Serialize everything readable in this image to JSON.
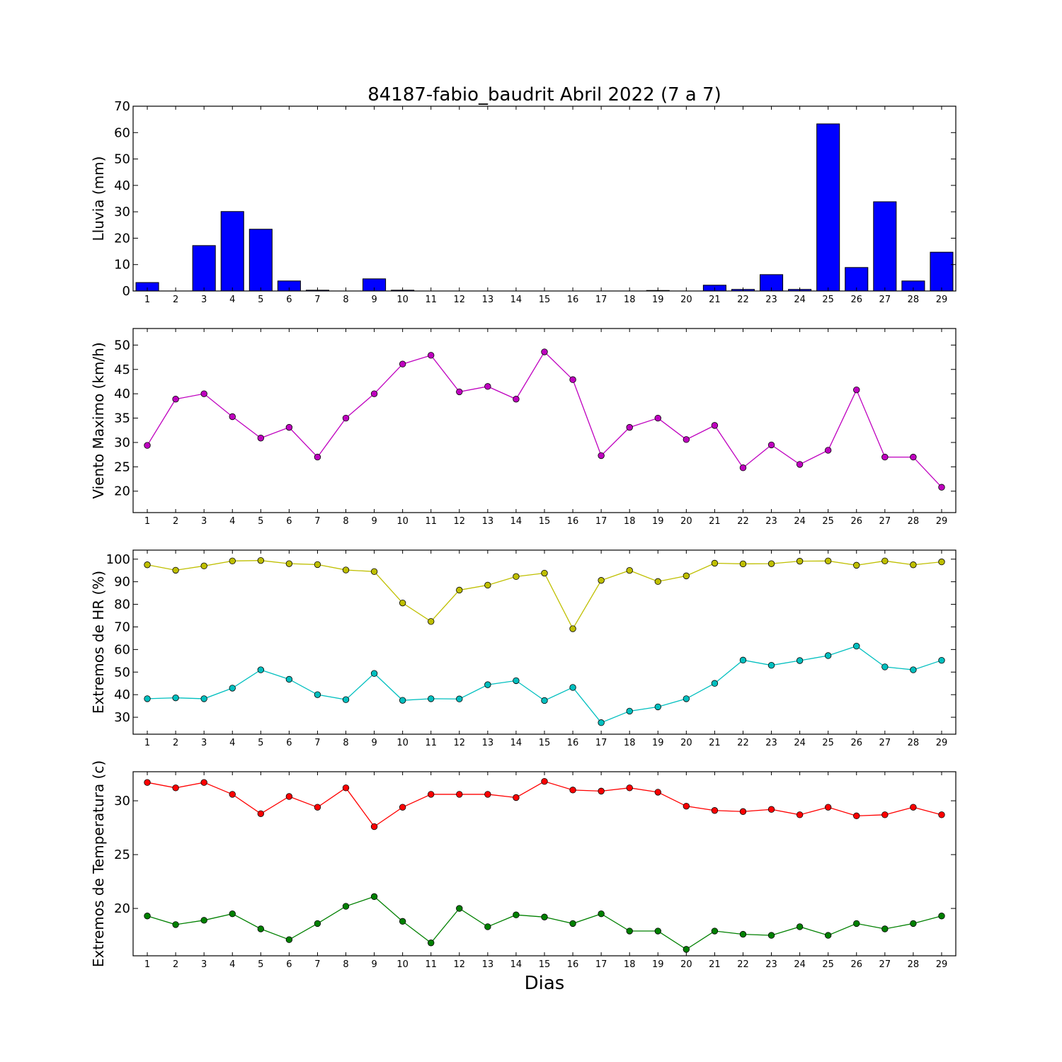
{
  "title": "84187-fabio_baudrit Abril 2022  (7 a 7)",
  "xlabel": "Dias",
  "chart_data": [
    {
      "type": "bar",
      "ylabel": "Lluvia (mm)",
      "ylim": [
        0,
        70
      ],
      "yticks": [
        0,
        10,
        20,
        30,
        40,
        50,
        60,
        70
      ],
      "categories": [
        1,
        2,
        3,
        4,
        5,
        6,
        7,
        8,
        9,
        10,
        11,
        12,
        13,
        14,
        15,
        16,
        17,
        18,
        19,
        20,
        21,
        22,
        23,
        24,
        25,
        26,
        27,
        28,
        29
      ],
      "series": [
        {
          "color": "#0000ff",
          "values": [
            3.2,
            0,
            17.2,
            30.1,
            23.4,
            3.8,
            0.3,
            0,
            4.6,
            0.3,
            0,
            0,
            0,
            0,
            0,
            0,
            0,
            0,
            0.2,
            0,
            2.2,
            0.6,
            6.2,
            0.6,
            63.3,
            8.9,
            33.8,
            3.8,
            14.7
          ]
        }
      ],
      "grid": false
    },
    {
      "type": "line",
      "ylabel": "Viento Maximo (km/h)",
      "ylim": [
        15.6,
        53.4
      ],
      "yticks": [
        20,
        25,
        30,
        35,
        40,
        45,
        50
      ],
      "x": [
        1,
        2,
        3,
        4,
        5,
        6,
        7,
        8,
        9,
        10,
        11,
        12,
        13,
        14,
        15,
        16,
        17,
        18,
        19,
        20,
        21,
        22,
        23,
        24,
        25,
        26,
        27,
        28,
        29
      ],
      "series": [
        {
          "color": "#bf00bf",
          "values": [
            29.4,
            38.9,
            40.0,
            35.3,
            30.9,
            33.1,
            27.0,
            35.0,
            40.0,
            46.1,
            47.9,
            40.4,
            41.5,
            38.9,
            48.6,
            42.9,
            27.3,
            33.1,
            35.0,
            30.6,
            33.5,
            24.8,
            29.5,
            25.5,
            28.4,
            40.8,
            27.0,
            27.0,
            20.8
          ]
        }
      ],
      "grid": false
    },
    {
      "type": "line",
      "ylabel": "Extremos de HR (%)",
      "ylim": [
        22.5,
        104
      ],
      "yticks": [
        30,
        40,
        50,
        60,
        70,
        80,
        90,
        100
      ],
      "x": [
        1,
        2,
        3,
        4,
        5,
        6,
        7,
        8,
        9,
        10,
        11,
        12,
        13,
        14,
        15,
        16,
        17,
        18,
        19,
        20,
        21,
        22,
        23,
        24,
        25,
        26,
        27,
        28,
        29
      ],
      "series": [
        {
          "color": "#bfbf00",
          "values": [
            97.5,
            95.1,
            97.0,
            99.2,
            99.4,
            98.0,
            97.6,
            95.2,
            94.5,
            80.6,
            72.4,
            86.3,
            88.5,
            92.3,
            93.8,
            69.2,
            90.6,
            95.0,
            90.1,
            92.6,
            98.2,
            97.9,
            98.0,
            99.1,
            99.2,
            97.3,
            99.2,
            97.5,
            98.8
          ]
        },
        {
          "color": "#00bfbf",
          "values": [
            38.2,
            38.6,
            38.2,
            42.9,
            51.0,
            46.8,
            40.0,
            37.8,
            49.4,
            37.5,
            38.2,
            38.1,
            44.4,
            46.2,
            37.4,
            43.2,
            27.6,
            32.7,
            34.6,
            38.2,
            45.0,
            55.3,
            53.0,
            55.1,
            57.3,
            61.5,
            52.3,
            51.0,
            55.2
          ]
        }
      ],
      "grid": false
    },
    {
      "type": "line",
      "ylabel": "Extremos de Temperatura (c)",
      "ylim": [
        15.6,
        32.7
      ],
      "yticks": [
        20,
        25,
        30
      ],
      "x": [
        1,
        2,
        3,
        4,
        5,
        6,
        7,
        8,
        9,
        10,
        11,
        12,
        13,
        14,
        15,
        16,
        17,
        18,
        19,
        20,
        21,
        22,
        23,
        24,
        25,
        26,
        27,
        28,
        29
      ],
      "series": [
        {
          "color": "#ff0000",
          "values": [
            31.7,
            31.2,
            31.7,
            30.6,
            28.8,
            30.4,
            29.4,
            31.2,
            27.6,
            29.4,
            30.6,
            30.6,
            30.6,
            30.3,
            31.8,
            31.0,
            30.9,
            31.2,
            30.8,
            29.5,
            29.1,
            29.0,
            29.2,
            28.7,
            29.4,
            28.6,
            28.7,
            29.4,
            28.7
          ]
        },
        {
          "color": "#008000",
          "values": [
            19.3,
            18.5,
            18.9,
            19.5,
            18.1,
            17.1,
            18.6,
            20.2,
            21.1,
            18.8,
            16.8,
            20.0,
            18.3,
            19.4,
            19.2,
            18.6,
            19.5,
            17.9,
            17.9,
            16.2,
            17.9,
            17.6,
            17.5,
            18.3,
            17.5,
            18.6,
            18.1,
            18.6,
            19.3
          ]
        }
      ],
      "grid": false
    }
  ]
}
